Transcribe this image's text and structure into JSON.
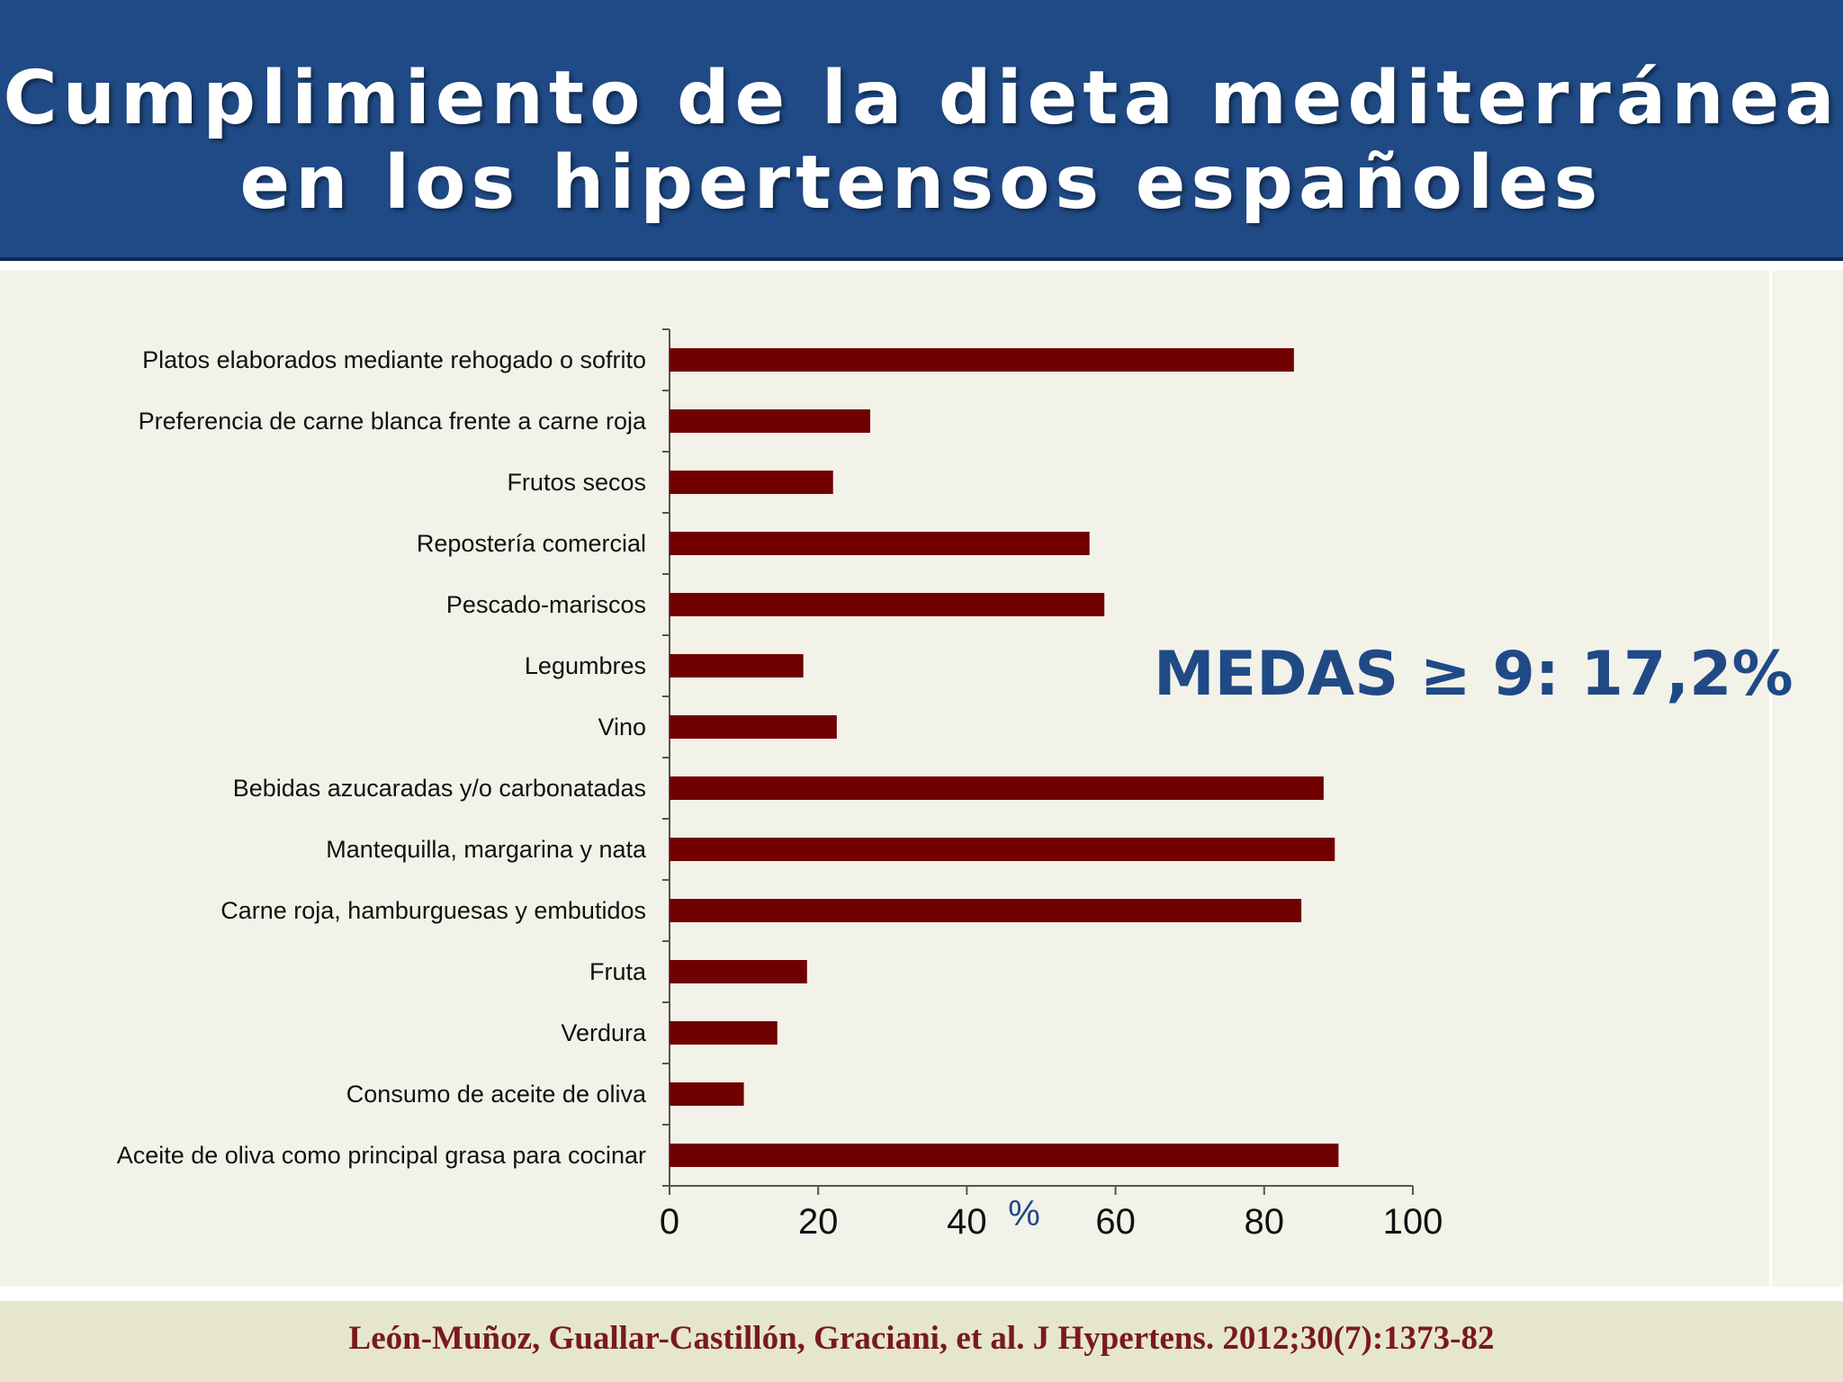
{
  "header": {
    "title_line_1": "Cumplimiento de la dieta mediterránea",
    "title_line_2": "en los hipertensos españoles"
  },
  "annotation": "MEDAS ≥ 9: 17,2%",
  "citation": "León-Muñoz, Guallar-Castillón, Graciani, et al. J Hypertens. 2012;30(7):1373-82",
  "colors": {
    "header_bg": "#1f4a86",
    "bar": "#700000",
    "accent_text": "#1f4a86",
    "citation_text": "#7a1a1a"
  },
  "chart_data": {
    "type": "bar",
    "orientation": "horizontal",
    "categories": [
      "Platos elaborados mediante rehogado o sofrito",
      "Preferencia de carne blanca frente a carne roja",
      "Frutos secos",
      "Repostería comercial",
      "Pescado-mariscos",
      "Legumbres",
      "Vino",
      "Bebidas azucaradas y/o carbonatadas",
      "Mantequilla, margarina y nata",
      "Carne roja, hamburguesas y embutidos",
      "Fruta",
      "Verdura",
      "Consumo de aceite de oliva",
      "Aceite de oliva como principal grasa para cocinar"
    ],
    "values": [
      84,
      27,
      22,
      56.5,
      58.5,
      18,
      22.5,
      88,
      89.5,
      85,
      18.5,
      14.5,
      10,
      90
    ],
    "xlabel": "%",
    "xlim": [
      0,
      100
    ],
    "xticks": [
      "0",
      "20",
      "40",
      "60",
      "80",
      "100"
    ],
    "grid": false,
    "legend": "none"
  }
}
